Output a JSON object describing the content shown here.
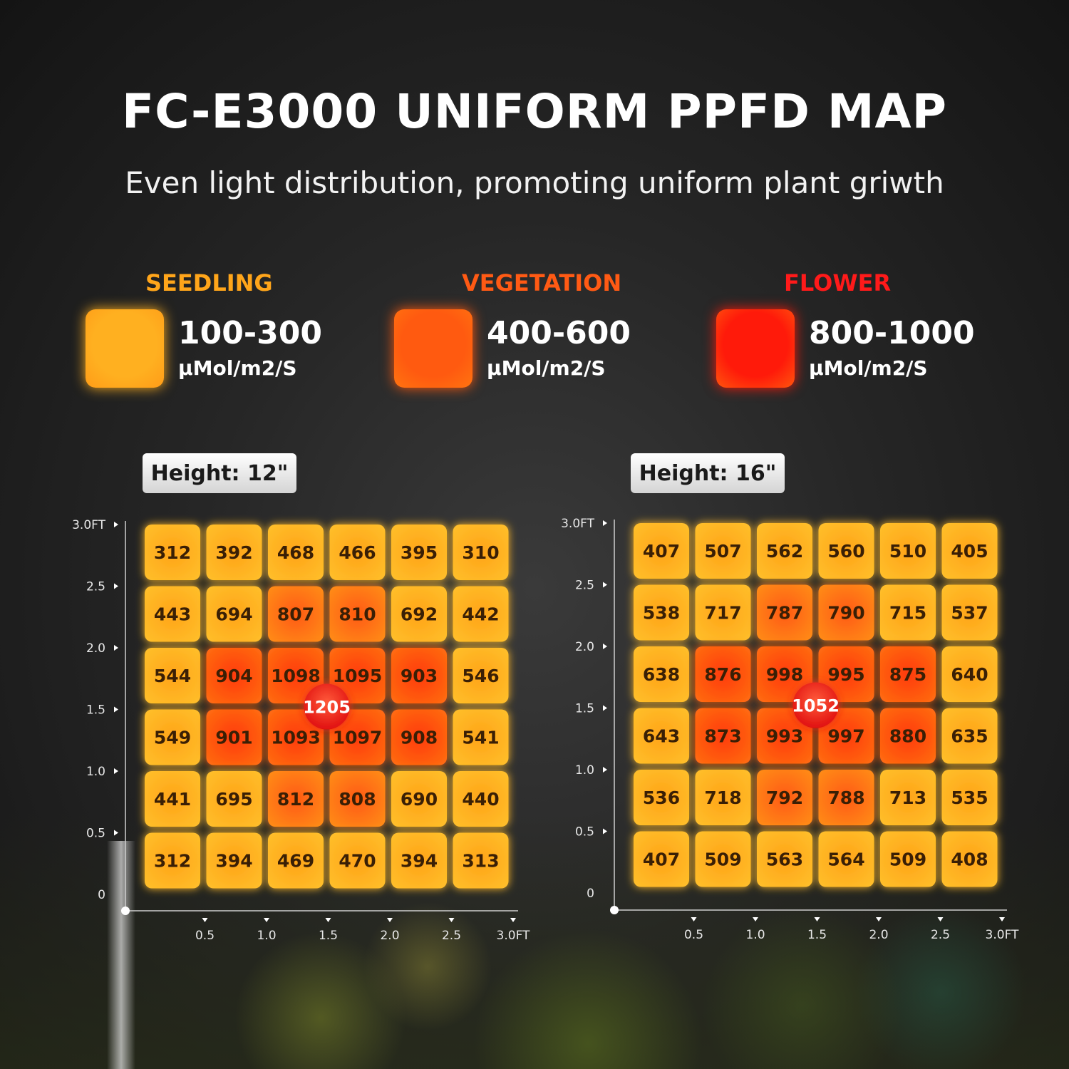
{
  "title": "FC-E3000 UNIFORM PPFD MAP",
  "subtitle": "Even light distribution, promoting uniform plant griwth",
  "legend": [
    {
      "label": "SEEDLING",
      "range": "100-300",
      "unit": "μMol/m2/S",
      "label_color": "#ffa51a",
      "swatch_color": "#ffb020"
    },
    {
      "label": "VEGETATION",
      "range": "400-600",
      "unit": "μMol/m2/S",
      "label_color": "#ff5a14",
      "swatch_color": "#ff5a10"
    },
    {
      "label": "FLOWER",
      "range": "800-1000",
      "unit": "μMol/m2/S",
      "label_color": "#ff1a1a",
      "swatch_color": "#ff1a0a"
    }
  ],
  "chart_data": [
    {
      "type": "heatmap",
      "title": "Height: 12\"",
      "x_ticks": [
        "0.5",
        "1.0",
        "1.5",
        "2.0",
        "2.5",
        "3.0FT"
      ],
      "y_ticks": [
        "3.0FT",
        "2.5",
        "2.0",
        "1.5",
        "1.0",
        "0.5",
        "0"
      ],
      "rows": [
        [
          312,
          392,
          468,
          466,
          395,
          310
        ],
        [
          443,
          694,
          807,
          810,
          692,
          442
        ],
        [
          544,
          904,
          1098,
          1095,
          903,
          546
        ],
        [
          549,
          901,
          1093,
          1097,
          908,
          541
        ],
        [
          441,
          695,
          812,
          808,
          690,
          440
        ],
        [
          312,
          394,
          469,
          470,
          394,
          313
        ]
      ],
      "peak": 1205
    },
    {
      "type": "heatmap",
      "title": "Height: 16\"",
      "x_ticks": [
        "0.5",
        "1.0",
        "1.5",
        "2.0",
        "2.5",
        "3.0FT"
      ],
      "y_ticks": [
        "3.0FT",
        "2.5",
        "2.0",
        "1.5",
        "1.0",
        "0.5",
        "0"
      ],
      "rows": [
        [
          407,
          507,
          562,
          560,
          510,
          405
        ],
        [
          538,
          717,
          787,
          790,
          715,
          537
        ],
        [
          638,
          876,
          998,
          995,
          875,
          640
        ],
        [
          643,
          873,
          993,
          997,
          880,
          635
        ],
        [
          536,
          718,
          792,
          788,
          713,
          535
        ],
        [
          407,
          509,
          563,
          564,
          509,
          408
        ]
      ],
      "peak": 1052
    }
  ]
}
